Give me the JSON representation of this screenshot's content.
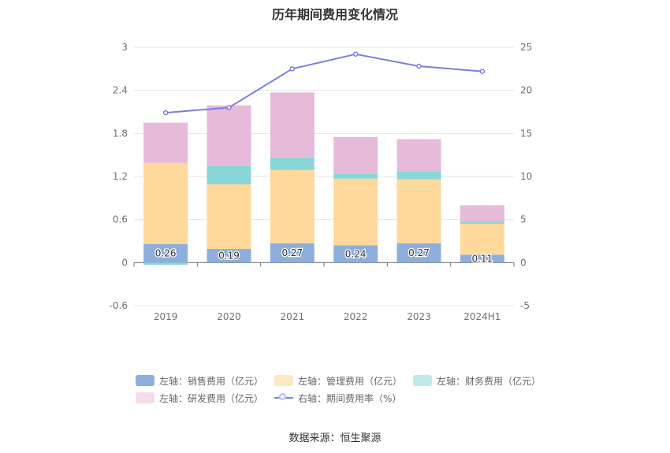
{
  "chart_data": {
    "type": "bar",
    "title": "历年期间费用变化情况",
    "categories": [
      "2019",
      "2020",
      "2021",
      "2022",
      "2023",
      "2024H1"
    ],
    "left_axis": {
      "min": -0.6,
      "max": 3,
      "ticks": [
        "-0.6",
        "0",
        "0.6",
        "1.2",
        "1.8",
        "2.4",
        "3"
      ]
    },
    "right_axis": {
      "min": -5,
      "max": 25,
      "ticks": [
        "-5",
        "0",
        "5",
        "10",
        "15",
        "20",
        "25"
      ]
    },
    "series": [
      {
        "name": "左轴：销售费用（亿元）",
        "type": "bar",
        "axis": "left",
        "color": "#8eaedd",
        "values": [
          0.26,
          0.19,
          0.27,
          0.24,
          0.27,
          0.11
        ],
        "labels": [
          "0.26",
          "0.19",
          "0.27",
          "0.24",
          "0.27",
          "0.11"
        ]
      },
      {
        "name": "左轴：管理费用（亿元）",
        "type": "bar",
        "axis": "left",
        "color": "#fed99b",
        "values": [
          1.13,
          0.9,
          1.02,
          0.93,
          0.89,
          0.43
        ]
      },
      {
        "name": "左轴：财务费用（亿元）",
        "type": "bar",
        "axis": "left",
        "color": "#88d6d8",
        "values": [
          -0.03,
          0.26,
          0.17,
          0.07,
          0.11,
          0.03
        ]
      },
      {
        "name": "左轴：研发费用（亿元）",
        "type": "bar",
        "axis": "left",
        "color": "#e6bad9",
        "values": [
          0.56,
          0.84,
          0.91,
          0.51,
          0.45,
          0.23
        ]
      },
      {
        "name": "右轴：期间费用率（%）",
        "type": "line",
        "axis": "right",
        "color": "#7b7fe0",
        "values": [
          17.4,
          18.0,
          22.5,
          24.2,
          22.8,
          22.2
        ]
      }
    ],
    "legend_position": "bottom",
    "grid": true
  },
  "source": "数据来源：恒生聚源"
}
